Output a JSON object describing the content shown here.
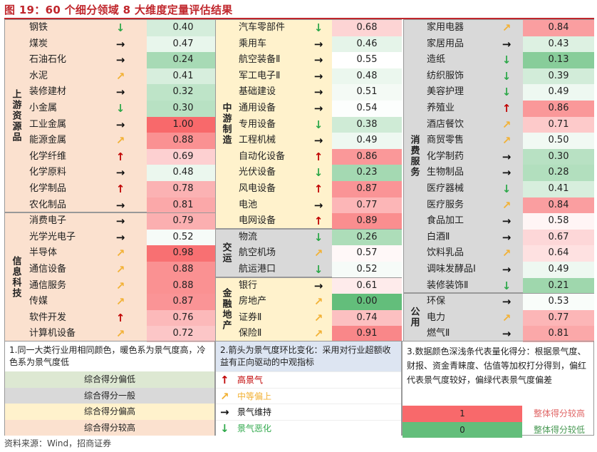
{
  "title": "图 19：60 个细分领域 8 大维度定量评估结果",
  "source": "资料来源：Wind，招商证券",
  "colors": {
    "warm": "#fbe1cf",
    "neutral": "#d9d9d9",
    "light": "#fff2cc",
    "blue": "#dde5f2",
    "high": "#f08080",
    "low": "#63be7b"
  },
  "columns": [
    {
      "blocks": [
        {
          "label": "上游资源品",
          "bg": "#fbe1cf",
          "rows": [
            {
              "name": "钢铁",
              "arrow": "down",
              "value": "0.40"
            },
            {
              "name": "煤炭",
              "arrow": "flat",
              "value": "0.47"
            },
            {
              "name": "石油石化",
              "arrow": "flat",
              "value": "0.24"
            },
            {
              "name": "水泥",
              "arrow": "up-mid",
              "value": "0.41"
            },
            {
              "name": "装修建材",
              "arrow": "flat",
              "value": "0.32"
            },
            {
              "name": "小金属",
              "arrow": "down",
              "value": "0.30"
            },
            {
              "name": "工业金属",
              "arrow": "flat",
              "value": "1.00"
            },
            {
              "name": "能源金属",
              "arrow": "up-mid",
              "value": "0.88"
            },
            {
              "name": "化学纤维",
              "arrow": "up",
              "value": "0.69"
            },
            {
              "name": "化学原料",
              "arrow": "flat",
              "value": "0.48"
            },
            {
              "name": "化学制品",
              "arrow": "up",
              "value": "0.78"
            },
            {
              "name": "农化制品",
              "arrow": "flat",
              "value": "0.81"
            }
          ]
        },
        {
          "label": "信息科技",
          "bg": "#fbe1cf",
          "rows": [
            {
              "name": "消费电子",
              "arrow": "flat",
              "value": "0.79"
            },
            {
              "name": "光学光电子",
              "arrow": "flat",
              "value": "0.52"
            },
            {
              "name": "半导体",
              "arrow": "up-mid",
              "value": "0.98"
            },
            {
              "name": "通信设备",
              "arrow": "up-mid",
              "value": "0.88"
            },
            {
              "name": "通信服务",
              "arrow": "up-mid",
              "value": "0.88"
            },
            {
              "name": "传媒",
              "arrow": "up-mid",
              "value": "0.87"
            },
            {
              "name": "软件开发",
              "arrow": "up",
              "value": "0.76"
            },
            {
              "name": "计算机设备",
              "arrow": "up-mid",
              "value": "0.72"
            }
          ]
        }
      ]
    },
    {
      "blocks": [
        {
          "label": "中游制造",
          "bg": "#fff2cc",
          "rows": [
            {
              "name": "汽车零部件",
              "arrow": "down",
              "value": "0.68"
            },
            {
              "name": "乘用车",
              "arrow": "flat",
              "value": "0.46"
            },
            {
              "name": "航空装备Ⅱ",
              "arrow": "flat",
              "value": "0.55"
            },
            {
              "name": "军工电子Ⅱ",
              "arrow": "flat",
              "value": "0.48"
            },
            {
              "name": "基础建设",
              "arrow": "flat",
              "value": "0.51"
            },
            {
              "name": "通用设备",
              "arrow": "flat",
              "value": "0.54"
            },
            {
              "name": "专用设备",
              "arrow": "down",
              "value": "0.38"
            },
            {
              "name": "工程机械",
              "arrow": "flat",
              "value": "0.49"
            },
            {
              "name": "自动化设备",
              "arrow": "up",
              "value": "0.86"
            },
            {
              "name": "光伏设备",
              "arrow": "down",
              "value": "0.23"
            },
            {
              "name": "风电设备",
              "arrow": "up",
              "value": "0.87"
            },
            {
              "name": "电池",
              "arrow": "flat",
              "value": "0.77"
            },
            {
              "name": "电网设备",
              "arrow": "up",
              "value": "0.89"
            }
          ]
        },
        {
          "label": "交运",
          "bg": "#d9d9d9",
          "rows": [
            {
              "name": "物流",
              "arrow": "down",
              "value": "0.26"
            },
            {
              "name": "航空机场",
              "arrow": "up-mid",
              "value": "0.57"
            },
            {
              "name": "航运港口",
              "arrow": "down",
              "value": "0.52"
            }
          ]
        },
        {
          "label": "金融地产",
          "bg": "#fff2cc",
          "rows": [
            {
              "name": "银行",
              "arrow": "flat",
              "value": "0.61"
            },
            {
              "name": "房地产",
              "arrow": "up-mid",
              "value": "0.00"
            },
            {
              "name": "证券Ⅱ",
              "arrow": "up-mid",
              "value": "0.74"
            },
            {
              "name": "保险Ⅱ",
              "arrow": "up-mid",
              "value": "0.91"
            }
          ]
        }
      ]
    },
    {
      "blocks": [
        {
          "label": "消费服务",
          "bg": "#d9d9d9",
          "rows": [
            {
              "name": "家用电器",
              "arrow": "up-mid",
              "value": "0.84"
            },
            {
              "name": "家居用品",
              "arrow": "flat",
              "value": "0.43"
            },
            {
              "name": "造纸",
              "arrow": "down",
              "value": "0.13"
            },
            {
              "name": "纺织服饰",
              "arrow": "down",
              "value": "0.39"
            },
            {
              "name": "美容护理",
              "arrow": "down",
              "value": "0.49"
            },
            {
              "name": "养殖业",
              "arrow": "up",
              "value": "0.86"
            },
            {
              "name": "酒店餐饮",
              "arrow": "up-mid",
              "value": "0.71"
            },
            {
              "name": "商贸零售",
              "arrow": "up-mid",
              "value": "0.50"
            },
            {
              "name": "化学制药",
              "arrow": "flat",
              "value": "0.30"
            },
            {
              "name": "生物制品",
              "arrow": "flat",
              "value": "0.28"
            },
            {
              "name": "医疗器械",
              "arrow": "down",
              "value": "0.41"
            },
            {
              "name": "医疗服务",
              "arrow": "up-mid",
              "value": "0.84"
            },
            {
              "name": "食品加工",
              "arrow": "flat",
              "value": "0.58"
            },
            {
              "name": "白酒Ⅱ",
              "arrow": "flat",
              "value": "0.67"
            },
            {
              "name": "饮料乳品",
              "arrow": "up-mid",
              "value": "0.64"
            },
            {
              "name": "调味发酵品Ⅰ",
              "arrow": "flat",
              "value": "0.49"
            },
            {
              "name": "装修装饰Ⅱ",
              "arrow": "down",
              "value": "0.21"
            }
          ]
        },
        {
          "label": "公用",
          "bg": "#d9d9d9",
          "rows": [
            {
              "name": "环保",
              "arrow": "flat",
              "value": "0.53"
            },
            {
              "name": "电力",
              "arrow": "up-mid",
              "value": "0.77"
            },
            {
              "name": "燃气Ⅱ",
              "arrow": "flat",
              "value": "0.81"
            }
          ]
        }
      ]
    }
  ],
  "notes": {
    "note1": "1.同一大类行业用相同颜色，暖色系为景气度高，冷色系为景气度低",
    "note2": "2.箭头为景气度环比变化：采用对行业超额收益有正向驱动的中观指标",
    "note3": "3.数据颜色深浅条代表量化得分：根据景气度、财报、资金青睐度、估值等加权打分得到，偏红代表景气度较好，偏绿代表景气度偏差",
    "legend1": [
      {
        "text": "综合得分偏低",
        "bg": "#dde8d2"
      },
      {
        "text": "综合得分一般",
        "bg": "#d9d9d9"
      },
      {
        "text": "综合得分偏高",
        "bg": "#fff2cc"
      },
      {
        "text": "综合得分较高",
        "bg": "#fbe1cf"
      }
    ],
    "legend2": [
      {
        "arrow": "up",
        "text": "高景气"
      },
      {
        "arrow": "up-mid",
        "text": "中等偏上"
      },
      {
        "arrow": "flat",
        "text": "景气维持"
      },
      {
        "arrow": "down",
        "text": "景气恶化"
      }
    ],
    "scale": [
      {
        "value": "1",
        "text": "整体得分较高"
      },
      {
        "value": "0",
        "text": "整体得分较低"
      }
    ]
  }
}
